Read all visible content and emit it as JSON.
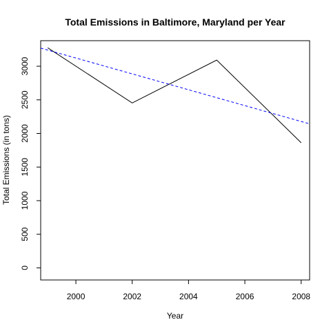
{
  "chart_data": {
    "type": "line",
    "title": "Total Emissions in Baltimore, Maryland per Year",
    "xlabel": "Year",
    "ylabel": "Total Emissions (in tons)",
    "xlim": [
      1998.75,
      2008.3
    ],
    "ylim": [
      -180,
      3380
    ],
    "x_ticks": [
      2000,
      2002,
      2004,
      2006,
      2008
    ],
    "y_ticks": [
      0,
      500,
      1000,
      1500,
      2000,
      2500,
      3000
    ],
    "x_tick_labels": [
      "2000",
      "2002",
      "2004",
      "2006",
      "2008"
    ],
    "y_tick_labels": [
      "0",
      "500",
      "1000",
      "1500",
      "2000",
      "2500",
      "3000"
    ],
    "grid": false,
    "legend": "none",
    "series": [
      {
        "style": "solid",
        "color": "#000000",
        "x": [
          1999,
          2002,
          2005,
          2008
        ],
        "y": [
          3274,
          2454,
          3091,
          1862
        ]
      }
    ],
    "trendline": {
      "style": "dashed",
      "color": "#0000ff",
      "intercept_at_1999": 3240,
      "slope_per_year": -118
    }
  }
}
